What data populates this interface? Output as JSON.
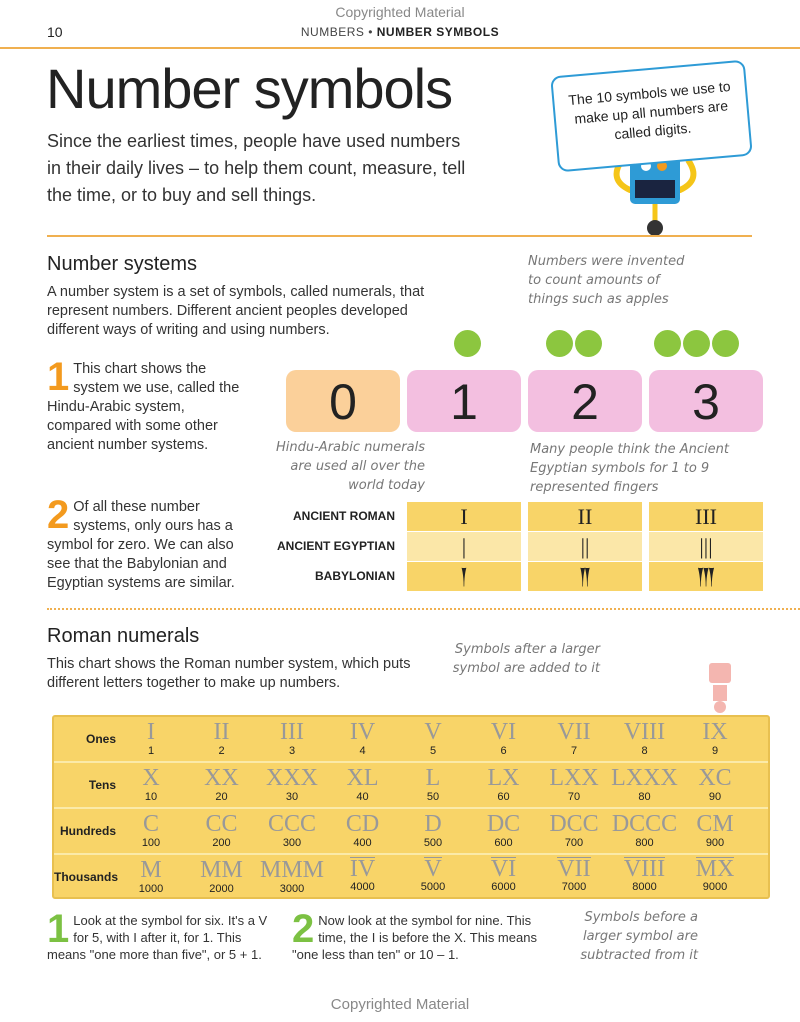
{
  "header": {
    "page_number": "10",
    "section": "NUMBERS",
    "separator": " • ",
    "title": "NUMBER SYMBOLS",
    "watermark": "Copyrighted Material"
  },
  "title": "Number symbols",
  "intro": "Since the earliest times, people have used numbers in their daily lives – to help them count, measure, tell the time, or to buy and sell things.",
  "bubble": "The 10 symbols we use to make up all numbers are called digits.",
  "number_systems": {
    "heading": "Number systems",
    "text": "A number system is a set of symbols, called numerals, that represent numbers. Different ancient peoples developed different ways of writing and using numbers.",
    "point1": {
      "num": "1",
      "text": "This chart shows the system we use, called the Hindu-Arabic system, compared with some other ancient number systems."
    },
    "point2": {
      "num": "2",
      "text": "Of all these number systems, only ours has a symbol for zero. We can also see that the Babylonian and Egyptian systems are similar."
    },
    "note_apples": "Numbers were invented to count amounts of things such as apples",
    "note_hindu": "Hindu-Arabic numerals are used all over the world today",
    "note_fingers": "Many people think the Ancient Egyptian symbols for 1 to 9 represented fingers",
    "digits": [
      "0",
      "1",
      "2",
      "3"
    ],
    "apple_counts": [
      1,
      2,
      3
    ],
    "ancient": [
      {
        "label": "ANCIENT ROMAN",
        "values": [
          "I",
          "II",
          "III"
        ]
      },
      {
        "label": "ANCIENT EGYPTIAN",
        "values": [
          "|",
          "||",
          "|||"
        ]
      },
      {
        "label": "BABYLONIAN",
        "values": [
          "𒁹",
          "𒈫",
          "𒐈"
        ]
      }
    ]
  },
  "roman": {
    "heading": "Roman numerals",
    "text": "This chart shows the Roman number system, which puts different letters together to make up numbers.",
    "note_after": "Symbols after a larger symbol are added to it",
    "note_before": "Symbols before a larger symbol are subtracted from it",
    "rows": [
      {
        "label": "Ones",
        "cells": [
          [
            "I",
            "1"
          ],
          [
            "II",
            "2"
          ],
          [
            "III",
            "3"
          ],
          [
            "IV",
            "4"
          ],
          [
            "V",
            "5"
          ],
          [
            "VI",
            "6"
          ],
          [
            "VII",
            "7"
          ],
          [
            "VIII",
            "8"
          ],
          [
            "IX",
            "9"
          ]
        ]
      },
      {
        "label": "Tens",
        "cells": [
          [
            "X",
            "10"
          ],
          [
            "XX",
            "20"
          ],
          [
            "XXX",
            "30"
          ],
          [
            "XL",
            "40"
          ],
          [
            "L",
            "50"
          ],
          [
            "LX",
            "60"
          ],
          [
            "LXX",
            "70"
          ],
          [
            "LXXX",
            "80"
          ],
          [
            "XC",
            "90"
          ]
        ]
      },
      {
        "label": "Hundreds",
        "cells": [
          [
            "C",
            "100"
          ],
          [
            "CC",
            "200"
          ],
          [
            "CCC",
            "300"
          ],
          [
            "CD",
            "400"
          ],
          [
            "D",
            "500"
          ],
          [
            "DC",
            "600"
          ],
          [
            "DCC",
            "700"
          ],
          [
            "DCCC",
            "800"
          ],
          [
            "CM",
            "900"
          ]
        ]
      },
      {
        "label": "Thousands",
        "cells": [
          [
            "M",
            "1000"
          ],
          [
            "MM",
            "2000"
          ],
          [
            "MMM",
            "3000"
          ],
          [
            "IV",
            "4000",
            true
          ],
          [
            "V",
            "5000",
            true
          ],
          [
            "VI",
            "6000",
            true
          ],
          [
            "VII",
            "7000",
            true
          ],
          [
            "VIII",
            "8000",
            true
          ],
          [
            "MX",
            "9000",
            true
          ]
        ]
      }
    ],
    "point1": {
      "num": "1",
      "text": "Look at the symbol for six. It's a V for 5, with I after it, for 1. This means \"one more than five\", or 5 + 1."
    },
    "point2": {
      "num": "2",
      "text": "Now look at the symbol for nine. This time, the I is before the X. This means \"one less than ten\" or 10 – 1."
    }
  },
  "footer": "Copyrighted Material",
  "colors": {
    "accent": "#f0b050",
    "green": "#7cc143",
    "orange": "#f39a1e",
    "pink": "#f3bfe0",
    "peach": "#fbd09a",
    "yellow": "#f8d468"
  }
}
